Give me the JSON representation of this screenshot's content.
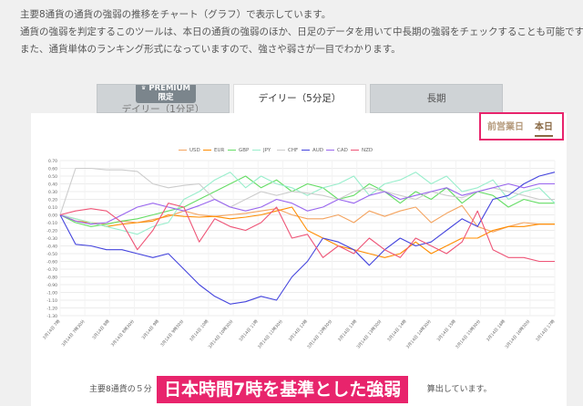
{
  "intro": [
    "主要8通貨の通貨の強弱の推移をチャート（グラフ）で表示しています。",
    "通貨の強弱を判定するこのツールは、本日の通貨の強弱のほか、日足のデータを用いて中長期の強弱をチェックすることも可能です。",
    "また、通貨単体のランキング形式になっていますので、強さや弱さが一目でわかります。"
  ],
  "tabs": {
    "premium_badge": "PREMIUM",
    "premium_badge_sub": "限定",
    "tab1": "デイリー（1分足）",
    "tab2": "デイリー（5分足）",
    "tab3": "長期"
  },
  "day_switch": {
    "prev": "前営業日",
    "today": "本日",
    "highlight_color": "#e8246c"
  },
  "caption": {
    "left": "主要8通貨の５分",
    "right": "算出しています。"
  },
  "overlay": "日本時間7時を基準とした強弱",
  "chart_data": {
    "type": "line",
    "ylim": [
      -1.3,
      0.7
    ],
    "yticks": [
      "0.70",
      "0.60",
      "0.50",
      "0.40",
      "0.30",
      "0.20",
      "0.10",
      "0.00",
      "-0.10",
      "-0.20",
      "-0.30",
      "-0.40",
      "-0.50",
      "-0.60",
      "-0.70",
      "-0.80",
      "-0.90",
      "-1.00",
      "-1.10",
      "-1.20",
      "-1.30"
    ],
    "xticks": [
      "3月14日 7時",
      "3月14日 7時30分",
      "3月14日 8時",
      "3月14日 8時30分",
      "3月14日 9時",
      "3月14日 9時30分",
      "3月14日 10時",
      "3月14日 10時30分",
      "3月14日 11時",
      "3月14日 11時30分",
      "3月14日 12時",
      "3月14日 12時30分",
      "3月14日 13時",
      "3月14日 13時30分",
      "3月14日 14時",
      "3月14日 14時30分",
      "3月14日 15時",
      "3月14日 15時30分",
      "3月14日 16時",
      "3月14日 16時30分",
      "3月14日 17時"
    ],
    "series": [
      {
        "name": "USD",
        "color": "#f4a460",
        "values": [
          0,
          -0.05,
          -0.1,
          -0.12,
          -0.08,
          -0.1,
          -0.06,
          -0.02,
          0.05,
          0,
          -0.02,
          0,
          0.02,
          0.05,
          0.08,
          0,
          -0.05,
          -0.05,
          0,
          -0.1,
          0.05,
          -0.02,
          0.05,
          0.1,
          -0.1,
          0.02,
          0.12,
          -0.15,
          -0.22,
          -0.15,
          -0.1,
          -0.12,
          -0.12
        ]
      },
      {
        "name": "EUR",
        "color": "#ff8c00",
        "values": [
          0,
          -0.08,
          -0.1,
          -0.15,
          -0.12,
          -0.1,
          -0.08,
          0,
          -0.02,
          -0.03,
          -0.02,
          -0.05,
          -0.03,
          0,
          0.05,
          0.1,
          -0.2,
          -0.3,
          -0.4,
          -0.45,
          -0.5,
          -0.55,
          -0.5,
          -0.35,
          -0.5,
          -0.4,
          -0.3,
          -0.3,
          -0.2,
          -0.15,
          -0.15,
          -0.12,
          -0.12
        ]
      },
      {
        "name": "GBP",
        "color": "#66dd66",
        "values": [
          0,
          -0.1,
          -0.15,
          -0.12,
          -0.08,
          -0.05,
          0,
          0.05,
          0.1,
          0.2,
          0.3,
          0.4,
          0.5,
          0.35,
          0.45,
          0.3,
          0.4,
          0.35,
          0.2,
          0.25,
          0.4,
          0.3,
          0.15,
          0.3,
          0.2,
          0.35,
          0.15,
          0.3,
          0.25,
          0.1,
          0.2,
          0.15,
          0.15
        ]
      },
      {
        "name": "JPY",
        "color": "#99eecc",
        "values": [
          0,
          -0.05,
          -0.1,
          -0.15,
          -0.2,
          -0.25,
          -0.15,
          -0.1,
          0.2,
          0.3,
          0.45,
          0.55,
          0.35,
          0.5,
          0.4,
          0.35,
          0.25,
          0.35,
          0.4,
          0.5,
          0.25,
          0.4,
          0.45,
          0.55,
          0.4,
          0.5,
          0.3,
          0.35,
          0.45,
          0.2,
          0.3,
          0.35,
          0.15
        ]
      },
      {
        "name": "CHF",
        "color": "#cccccc",
        "values": [
          0,
          0.6,
          0.6,
          0.58,
          0.58,
          0.56,
          0.4,
          0.35,
          0.38,
          0.4,
          0.2,
          0.1,
          0.2,
          0.3,
          0.25,
          0.3,
          0.28,
          0.25,
          0.2,
          0.3,
          0.35,
          0.3,
          0.25,
          0.2,
          0.3,
          0.25,
          0.22,
          0.3,
          0.35,
          0.3,
          0.25,
          0.2,
          0.2
        ]
      },
      {
        "name": "AUD",
        "color": "#4444dd",
        "values": [
          0,
          -0.38,
          -0.4,
          -0.45,
          -0.45,
          -0.5,
          -0.55,
          -0.5,
          -0.7,
          -0.9,
          -1.05,
          -1.15,
          -1.12,
          -1.05,
          -1.1,
          -0.8,
          -0.6,
          -0.3,
          -0.35,
          -0.45,
          -0.65,
          -0.45,
          -0.3,
          -0.4,
          -0.35,
          -0.2,
          -0.05,
          -0.15,
          0.2,
          0.25,
          0.4,
          0.5,
          0.55
        ]
      },
      {
        "name": "CAD",
        "color": "#9966ee",
        "values": [
          0,
          -0.08,
          -0.12,
          -0.1,
          0,
          0.1,
          0.15,
          0.1,
          0.05,
          0.12,
          0.2,
          0.1,
          0.05,
          0.1,
          0.2,
          0.15,
          0.05,
          0.1,
          0.2,
          0.15,
          0.25,
          0.3,
          0.2,
          0.25,
          0.3,
          0.35,
          0.25,
          0.3,
          0.35,
          0.4,
          0.35,
          0.4,
          0.4
        ]
      },
      {
        "name": "NZD",
        "color": "#ee5577",
        "values": [
          0,
          0.05,
          0.08,
          0.05,
          -0.1,
          -0.45,
          -0.2,
          0.15,
          0.1,
          -0.35,
          -0.05,
          -0.15,
          -0.2,
          -0.1,
          0.1,
          -0.3,
          -0.25,
          -0.55,
          -0.4,
          -0.5,
          -0.3,
          -0.45,
          -0.55,
          -0.3,
          -0.4,
          -0.5,
          -0.35,
          0.05,
          -0.45,
          -0.55,
          -0.55,
          -0.6,
          -0.6
        ]
      }
    ],
    "grid": true,
    "legend_position": "top"
  }
}
